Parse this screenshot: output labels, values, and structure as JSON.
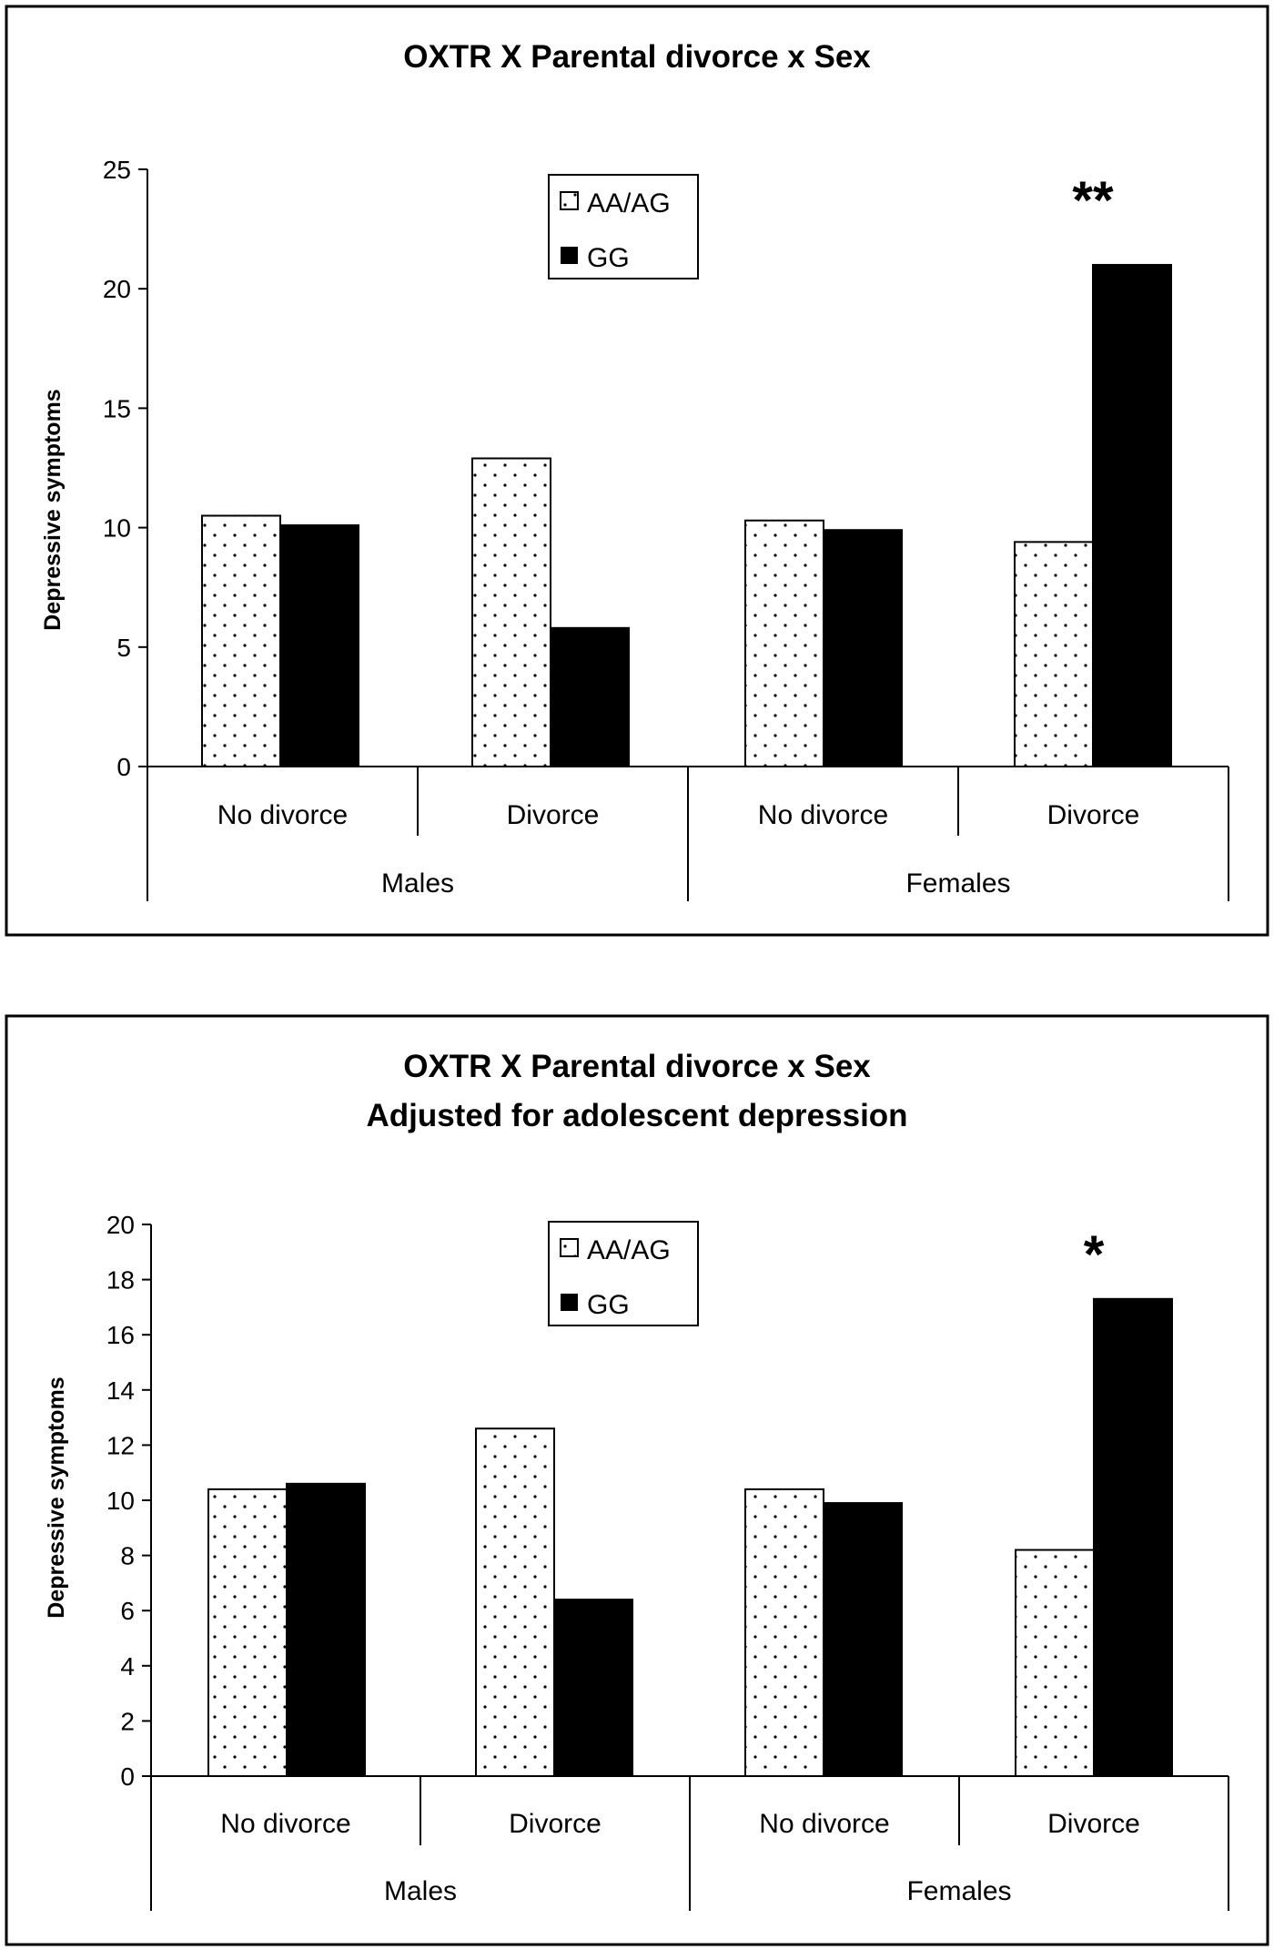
{
  "chart_data": [
    {
      "type": "bar",
      "title": "OXTR X Parental divorce x Sex",
      "subtitle": "",
      "ylabel": "Depressive symptoms",
      "xlabel": "",
      "ylim": [
        0,
        25
      ],
      "yticks": [
        0,
        5,
        10,
        15,
        20,
        25
      ],
      "groups": [
        "Males",
        "Females"
      ],
      "categories": [
        "No divorce",
        "Divorce",
        "No divorce",
        "Divorce"
      ],
      "series": [
        {
          "name": "AA/AG",
          "pattern": "dotted",
          "values": [
            10.5,
            12.9,
            10.3,
            9.4
          ]
        },
        {
          "name": "GG",
          "color": "#000000",
          "values": [
            10.1,
            5.8,
            9.9,
            21.0
          ]
        }
      ],
      "annotations": [
        {
          "text": "**",
          "category_index": 3
        }
      ],
      "legend": "top-center",
      "grid": false
    },
    {
      "type": "bar",
      "title": "OXTR X Parental divorce x Sex",
      "subtitle": "Adjusted for adolescent depression",
      "ylabel": "Depressive symptoms",
      "xlabel": "",
      "ylim": [
        0,
        20
      ],
      "yticks": [
        0,
        2,
        4,
        6,
        8,
        10,
        12,
        14,
        16,
        18,
        20
      ],
      "groups": [
        "Males",
        "Females"
      ],
      "categories": [
        "No divorce",
        "Divorce",
        "No divorce",
        "Divorce"
      ],
      "series": [
        {
          "name": "AA/AG",
          "pattern": "dotted",
          "values": [
            10.4,
            12.6,
            10.4,
            8.2
          ]
        },
        {
          "name": "GG",
          "color": "#000000",
          "values": [
            10.6,
            6.4,
            9.9,
            17.3
          ]
        }
      ],
      "annotations": [
        {
          "text": "*",
          "category_index": 3
        }
      ],
      "legend": "top-center",
      "grid": false
    }
  ]
}
